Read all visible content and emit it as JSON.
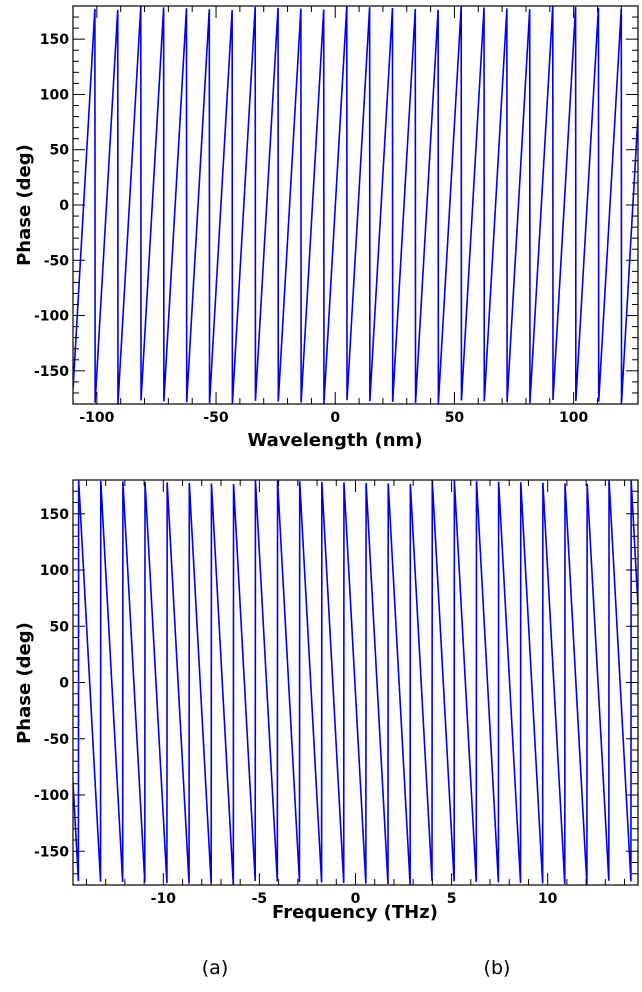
{
  "chart_data": [
    {
      "type": "line",
      "title": "",
      "xlabel": "Wavelength (nm)",
      "ylabel": "Phase (deg)",
      "xlim": [
        -110,
        127
      ],
      "ylim": [
        -180,
        180
      ],
      "xticks": [
        -100,
        -50,
        0,
        50,
        100
      ],
      "yticks": [
        -150,
        -100,
        -50,
        0,
        50,
        100,
        150
      ],
      "xtick_labels": [
        "-100",
        "-50",
        "0",
        "50",
        "100"
      ],
      "ytick_labels": [
        "-150",
        "-100",
        "-50",
        "0",
        "50",
        "100",
        "150"
      ],
      "series": [
        {
          "description": "wrapped phase sawtooth, rising ramps from -180 to 180 deg, period ~9.6 nm",
          "x_start": -110,
          "x_end": 127,
          "period": 9.6,
          "phase_at_x0": -2,
          "direction": "rising"
        }
      ],
      "grid": false,
      "color": "#0000ee"
    },
    {
      "type": "line",
      "title": "",
      "xlabel": "Frequency (THz)",
      "ylabel": "Phase (deg)",
      "xlim": [
        -14.7,
        14.7
      ],
      "ylim": [
        -180,
        180
      ],
      "xticks": [
        -10,
        -5,
        0,
        5,
        10
      ],
      "yticks": [
        -150,
        -100,
        -50,
        0,
        50,
        100,
        150
      ],
      "xtick_labels": [
        "-10",
        "-5",
        "0",
        "5",
        "10"
      ],
      "ytick_labels": [
        "-150",
        "-100",
        "-50",
        "0",
        "50",
        "100",
        "150"
      ],
      "series": [
        {
          "description": "wrapped phase sawtooth, falling ramps from 180 to -180 deg, period ~1.15 THz",
          "x_start": -14.7,
          "x_end": 14.7,
          "period": 1.15,
          "phase_at_x0": -10,
          "direction": "falling"
        }
      ],
      "grid": false,
      "color": "#0000ee"
    }
  ],
  "labels": {
    "panel_a": "(a)",
    "panel_b": "(b)"
  }
}
